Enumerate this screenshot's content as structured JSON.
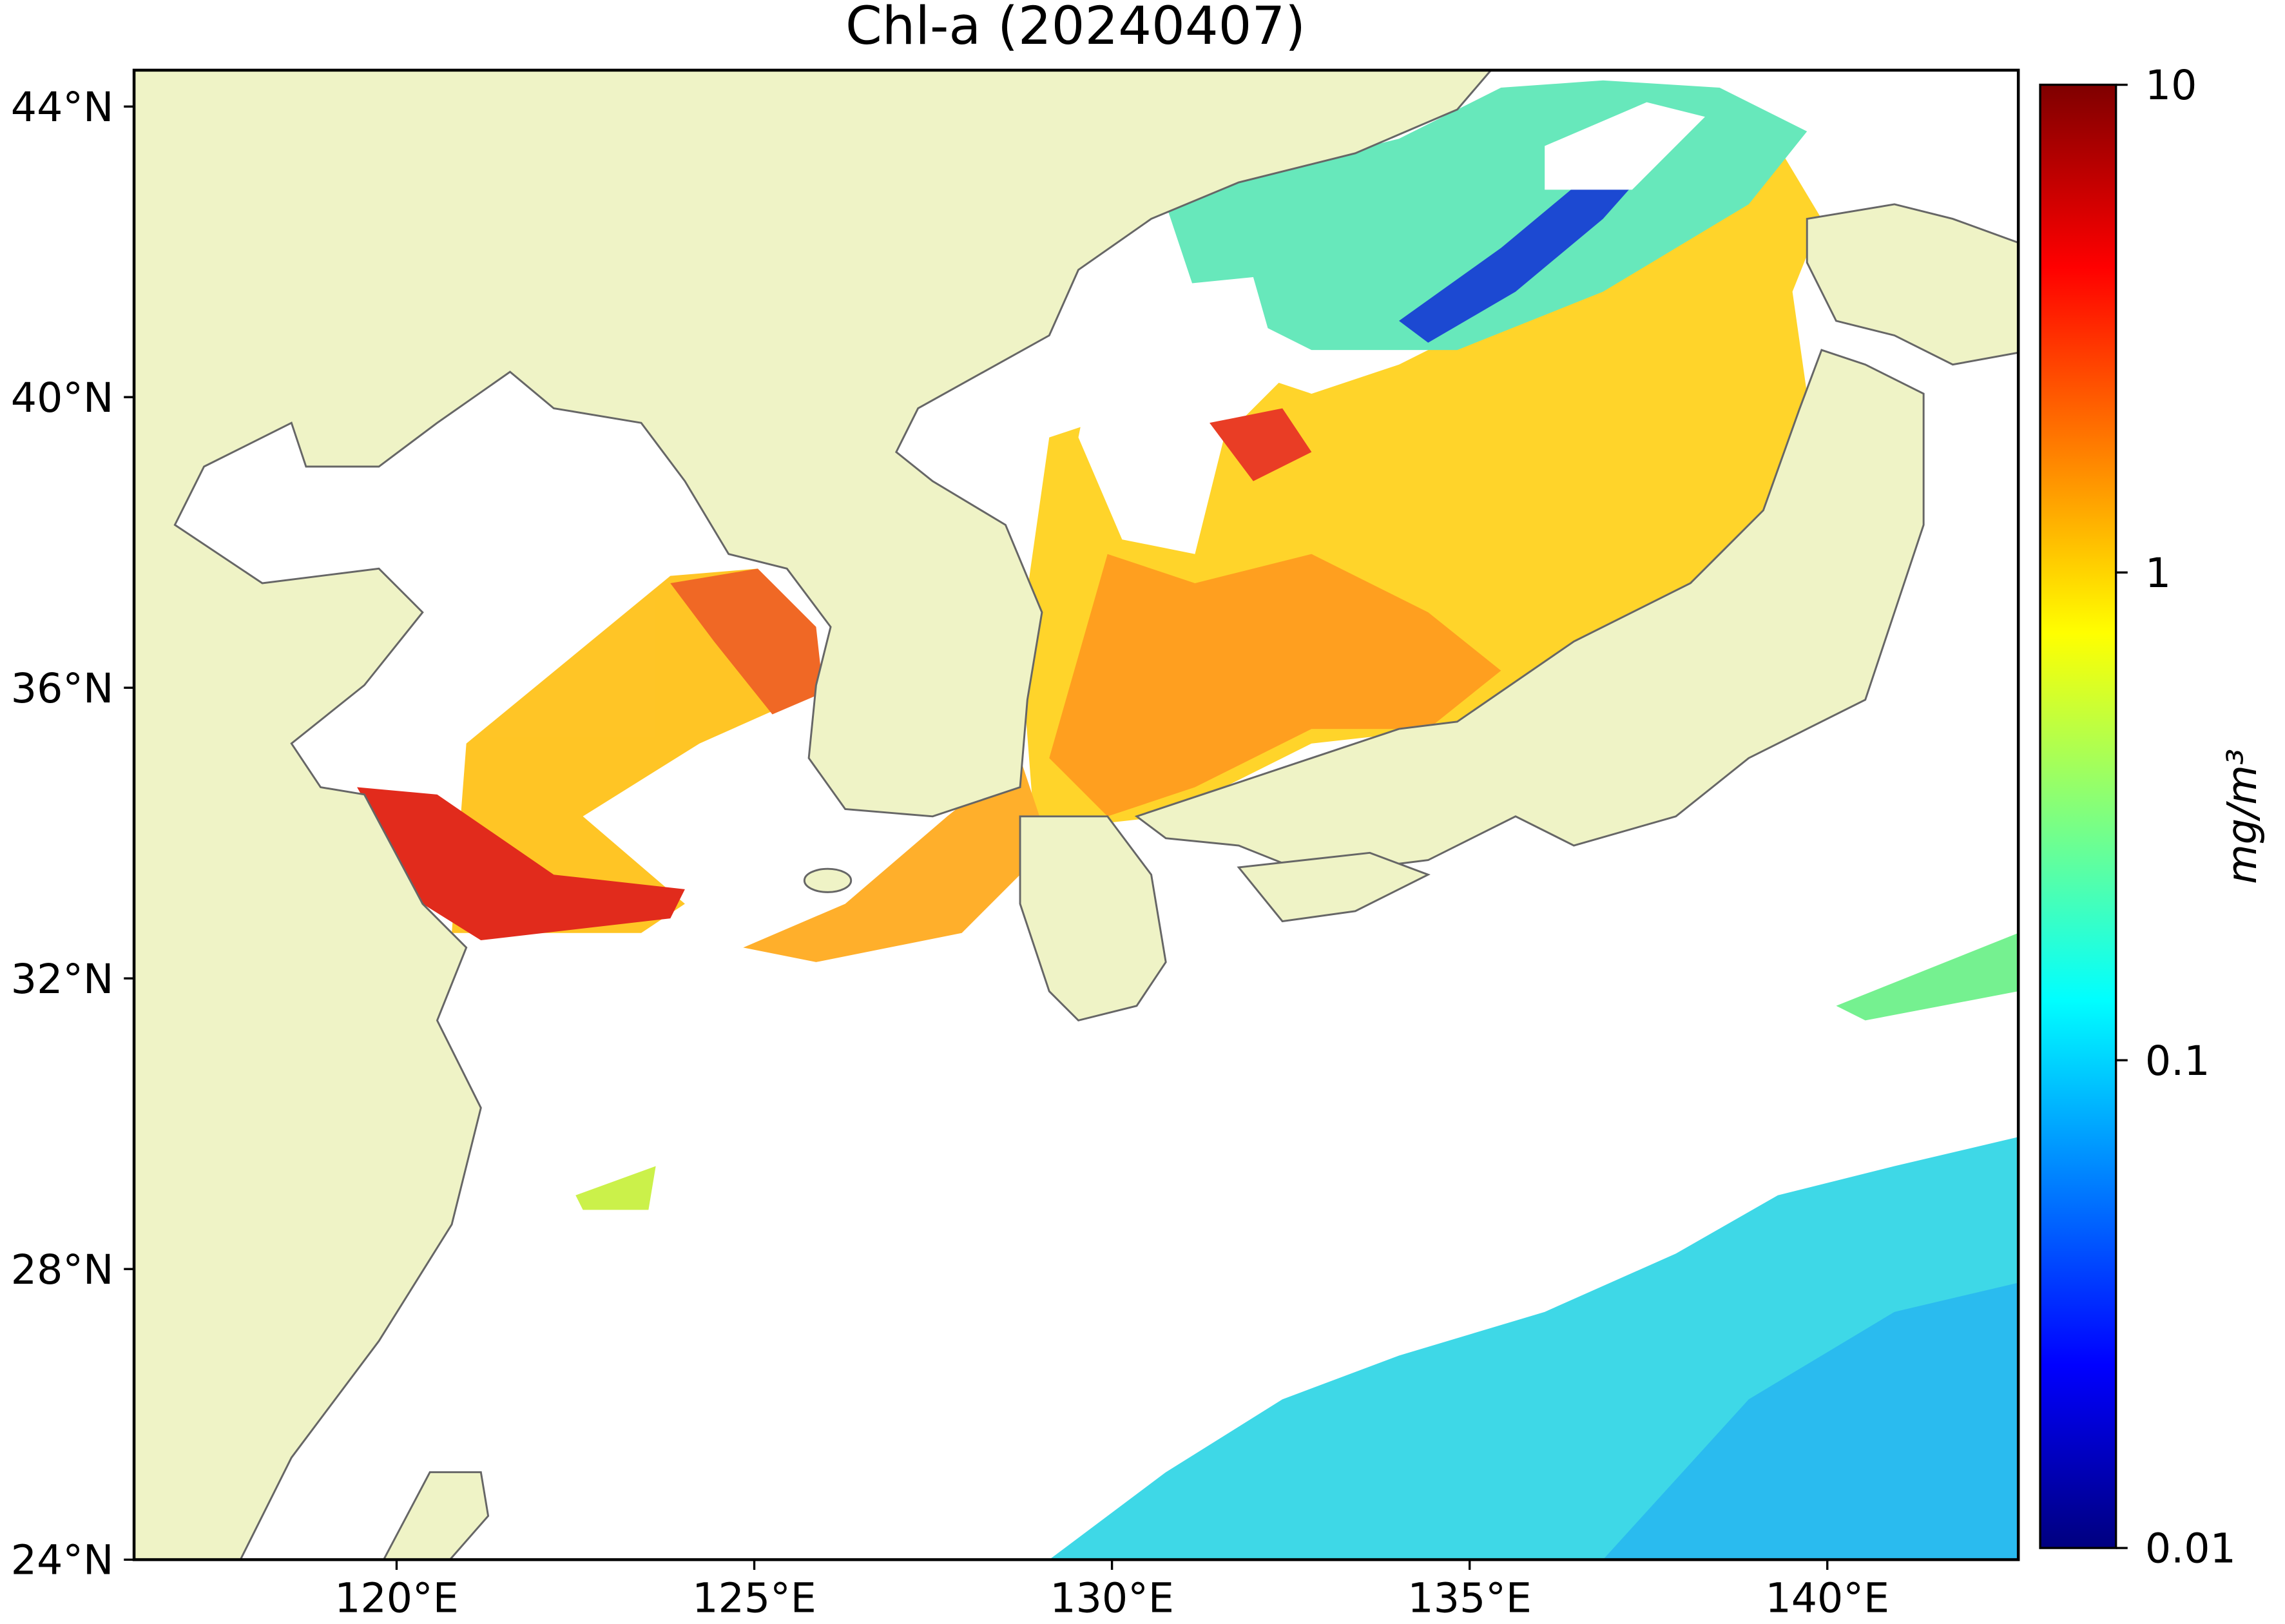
{
  "chart_data": {
    "type": "map",
    "title": "Chl-a (20240407)",
    "xlim": [
      116.33,
      142.67
    ],
    "ylim": [
      24,
      44.5
    ],
    "xticks": [
      {
        "value": 120,
        "label": "120°E"
      },
      {
        "value": 125,
        "label": "125°E"
      },
      {
        "value": 130,
        "label": "130°E"
      },
      {
        "value": 135,
        "label": "135°E"
      },
      {
        "value": 140,
        "label": "140°E"
      }
    ],
    "yticks": [
      {
        "value": 24,
        "label": "24°N"
      },
      {
        "value": 28,
        "label": "28°N"
      },
      {
        "value": 32,
        "label": "32°N"
      },
      {
        "value": 36,
        "label": "36°N"
      },
      {
        "value": 40,
        "label": "40°N"
      },
      {
        "value": 44,
        "label": "44°N"
      }
    ],
    "colorbar": {
      "label": "mg/m³",
      "log": true,
      "lim": [
        0.01,
        10
      ],
      "ticks": [
        0.01,
        0.1,
        1,
        10
      ],
      "colors": [
        "#00007f",
        "#0000ff",
        "#007fff",
        "#00ffff",
        "#7fff7f",
        "#ffff00",
        "#ff7f00",
        "#ff0000",
        "#7f0000"
      ]
    }
  }
}
